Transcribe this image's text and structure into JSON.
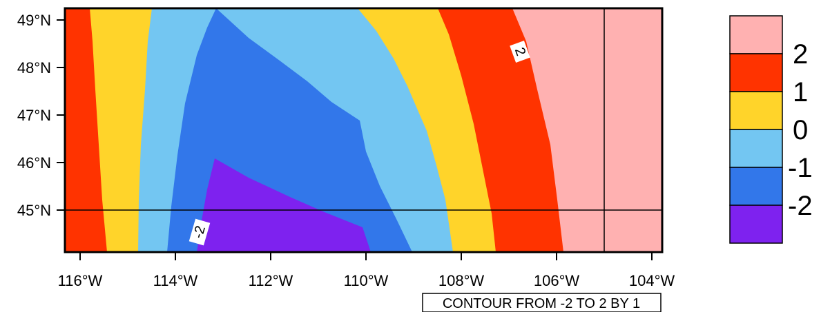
{
  "map": {
    "type": "filled-contour",
    "x_ticks": [
      "116°W",
      "114°W",
      "112°W",
      "110°W",
      "108°W",
      "106°W",
      "104°W"
    ],
    "y_ticks": [
      "49°N",
      "48°N",
      "47°N",
      "46°N",
      "45°N"
    ],
    "levels": {
      "min": -2,
      "max": 2,
      "step": 1
    },
    "contour_labels": [
      "2",
      "-2"
    ],
    "info_label": "CONTOUR FROM -2 TO 2 BY 1",
    "gridlines": {
      "longitude": "105°W",
      "latitude": "45°N"
    }
  },
  "legend": {
    "entries": [
      {
        "label": "2",
        "color": "#ffb1b1"
      },
      {
        "label": "1",
        "color": "#ff3300"
      },
      {
        "label": "0",
        "color": "#ffd42a"
      },
      {
        "label": "-1",
        "color": "#73c6f2"
      },
      {
        "label": "-2",
        "color": "#3277ea"
      }
    ],
    "bottom_color": "#7e22ef"
  },
  "colors": {
    "pink": "#ffb1b1",
    "red": "#ff3300",
    "yellow": "#ffd42a",
    "light_blue": "#73c6f2",
    "blue": "#3277ea",
    "purple": "#7e22ef"
  }
}
